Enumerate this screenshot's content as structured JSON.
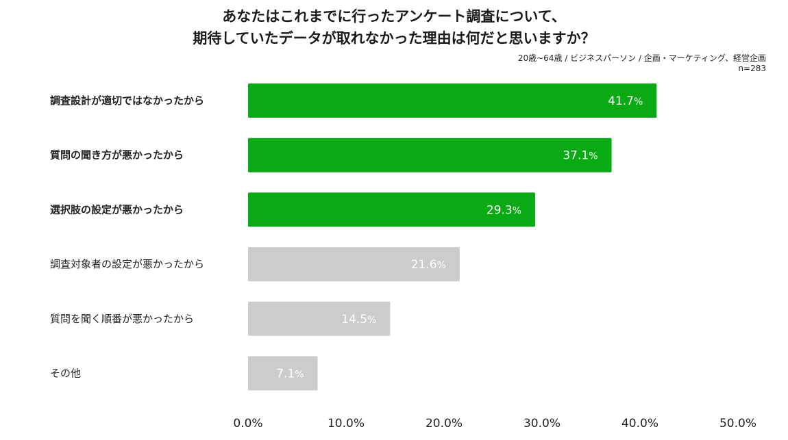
{
  "header": {
    "title_line1": "あなたはこれまでに行ったアンケート調査について、",
    "title_line2": "期待していたデータが取れなかった理由は何だと思いますか？",
    "subtitle_line1": "20歳~64歳 / ビジネスパーソン / 企画・マーケティング、経営企画",
    "subtitle_line2": "n=283"
  },
  "chart_data": {
    "type": "bar",
    "orientation": "horizontal",
    "categories": [
      "調査設計が適切ではなかったから",
      "質問の聞き方が悪かったから",
      "選択肢の設定が悪かったから",
      "調査対象者の設定が悪かったから",
      "質問を聞く順番が悪かったから",
      "その他"
    ],
    "values": [
      41.7,
      37.1,
      29.3,
      21.6,
      14.5,
      7.1
    ],
    "highlighted": [
      true,
      true,
      true,
      false,
      false,
      false
    ],
    "value_labels": [
      "41.7%",
      "37.1%",
      "29.3%",
      "21.6%",
      "14.5%",
      "7.1%"
    ],
    "xlim": [
      0,
      50
    ],
    "ticks": [
      "0.0%",
      "10.0%",
      "20.0%",
      "30.0%",
      "40.0%",
      "50.0%"
    ],
    "grid": false,
    "colors": {
      "highlight": "#0aaa14",
      "default": "#cccccc"
    }
  }
}
